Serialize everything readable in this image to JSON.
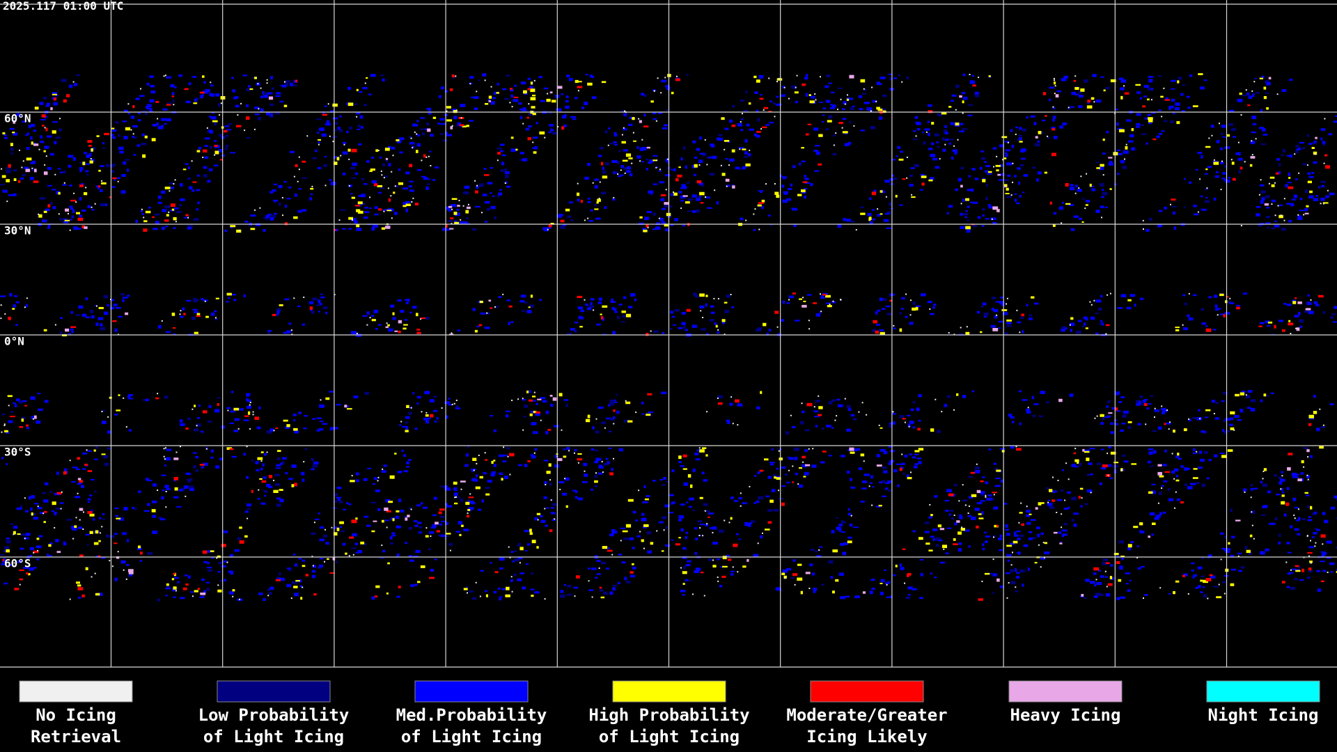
{
  "header": {
    "timestamp": "2025.117 01:00 UTC"
  },
  "map": {
    "latitude_labels": [
      "60°N",
      "30°N",
      "0°N",
      "30°S",
      "60°S"
    ]
  },
  "legend": {
    "items": [
      {
        "color": "#f0f0f0",
        "label": [
          "No Icing",
          "Retrieval"
        ]
      },
      {
        "color": "#000080",
        "label": [
          "Low Probability",
          "of Light Icing"
        ]
      },
      {
        "color": "#0000ff",
        "label": [
          "Med.Probability",
          "of Light Icing"
        ]
      },
      {
        "color": "#ffff00",
        "label": [
          "High Probability",
          "of Light Icing"
        ]
      },
      {
        "color": "#ff0000",
        "label": [
          "Moderate/Greater",
          "Icing Likely"
        ]
      },
      {
        "color": "#e8a8e8",
        "label": [
          "Heavy Icing",
          ""
        ]
      },
      {
        "color": "#00ffff",
        "label": [
          "Night Icing",
          ""
        ]
      }
    ]
  }
}
